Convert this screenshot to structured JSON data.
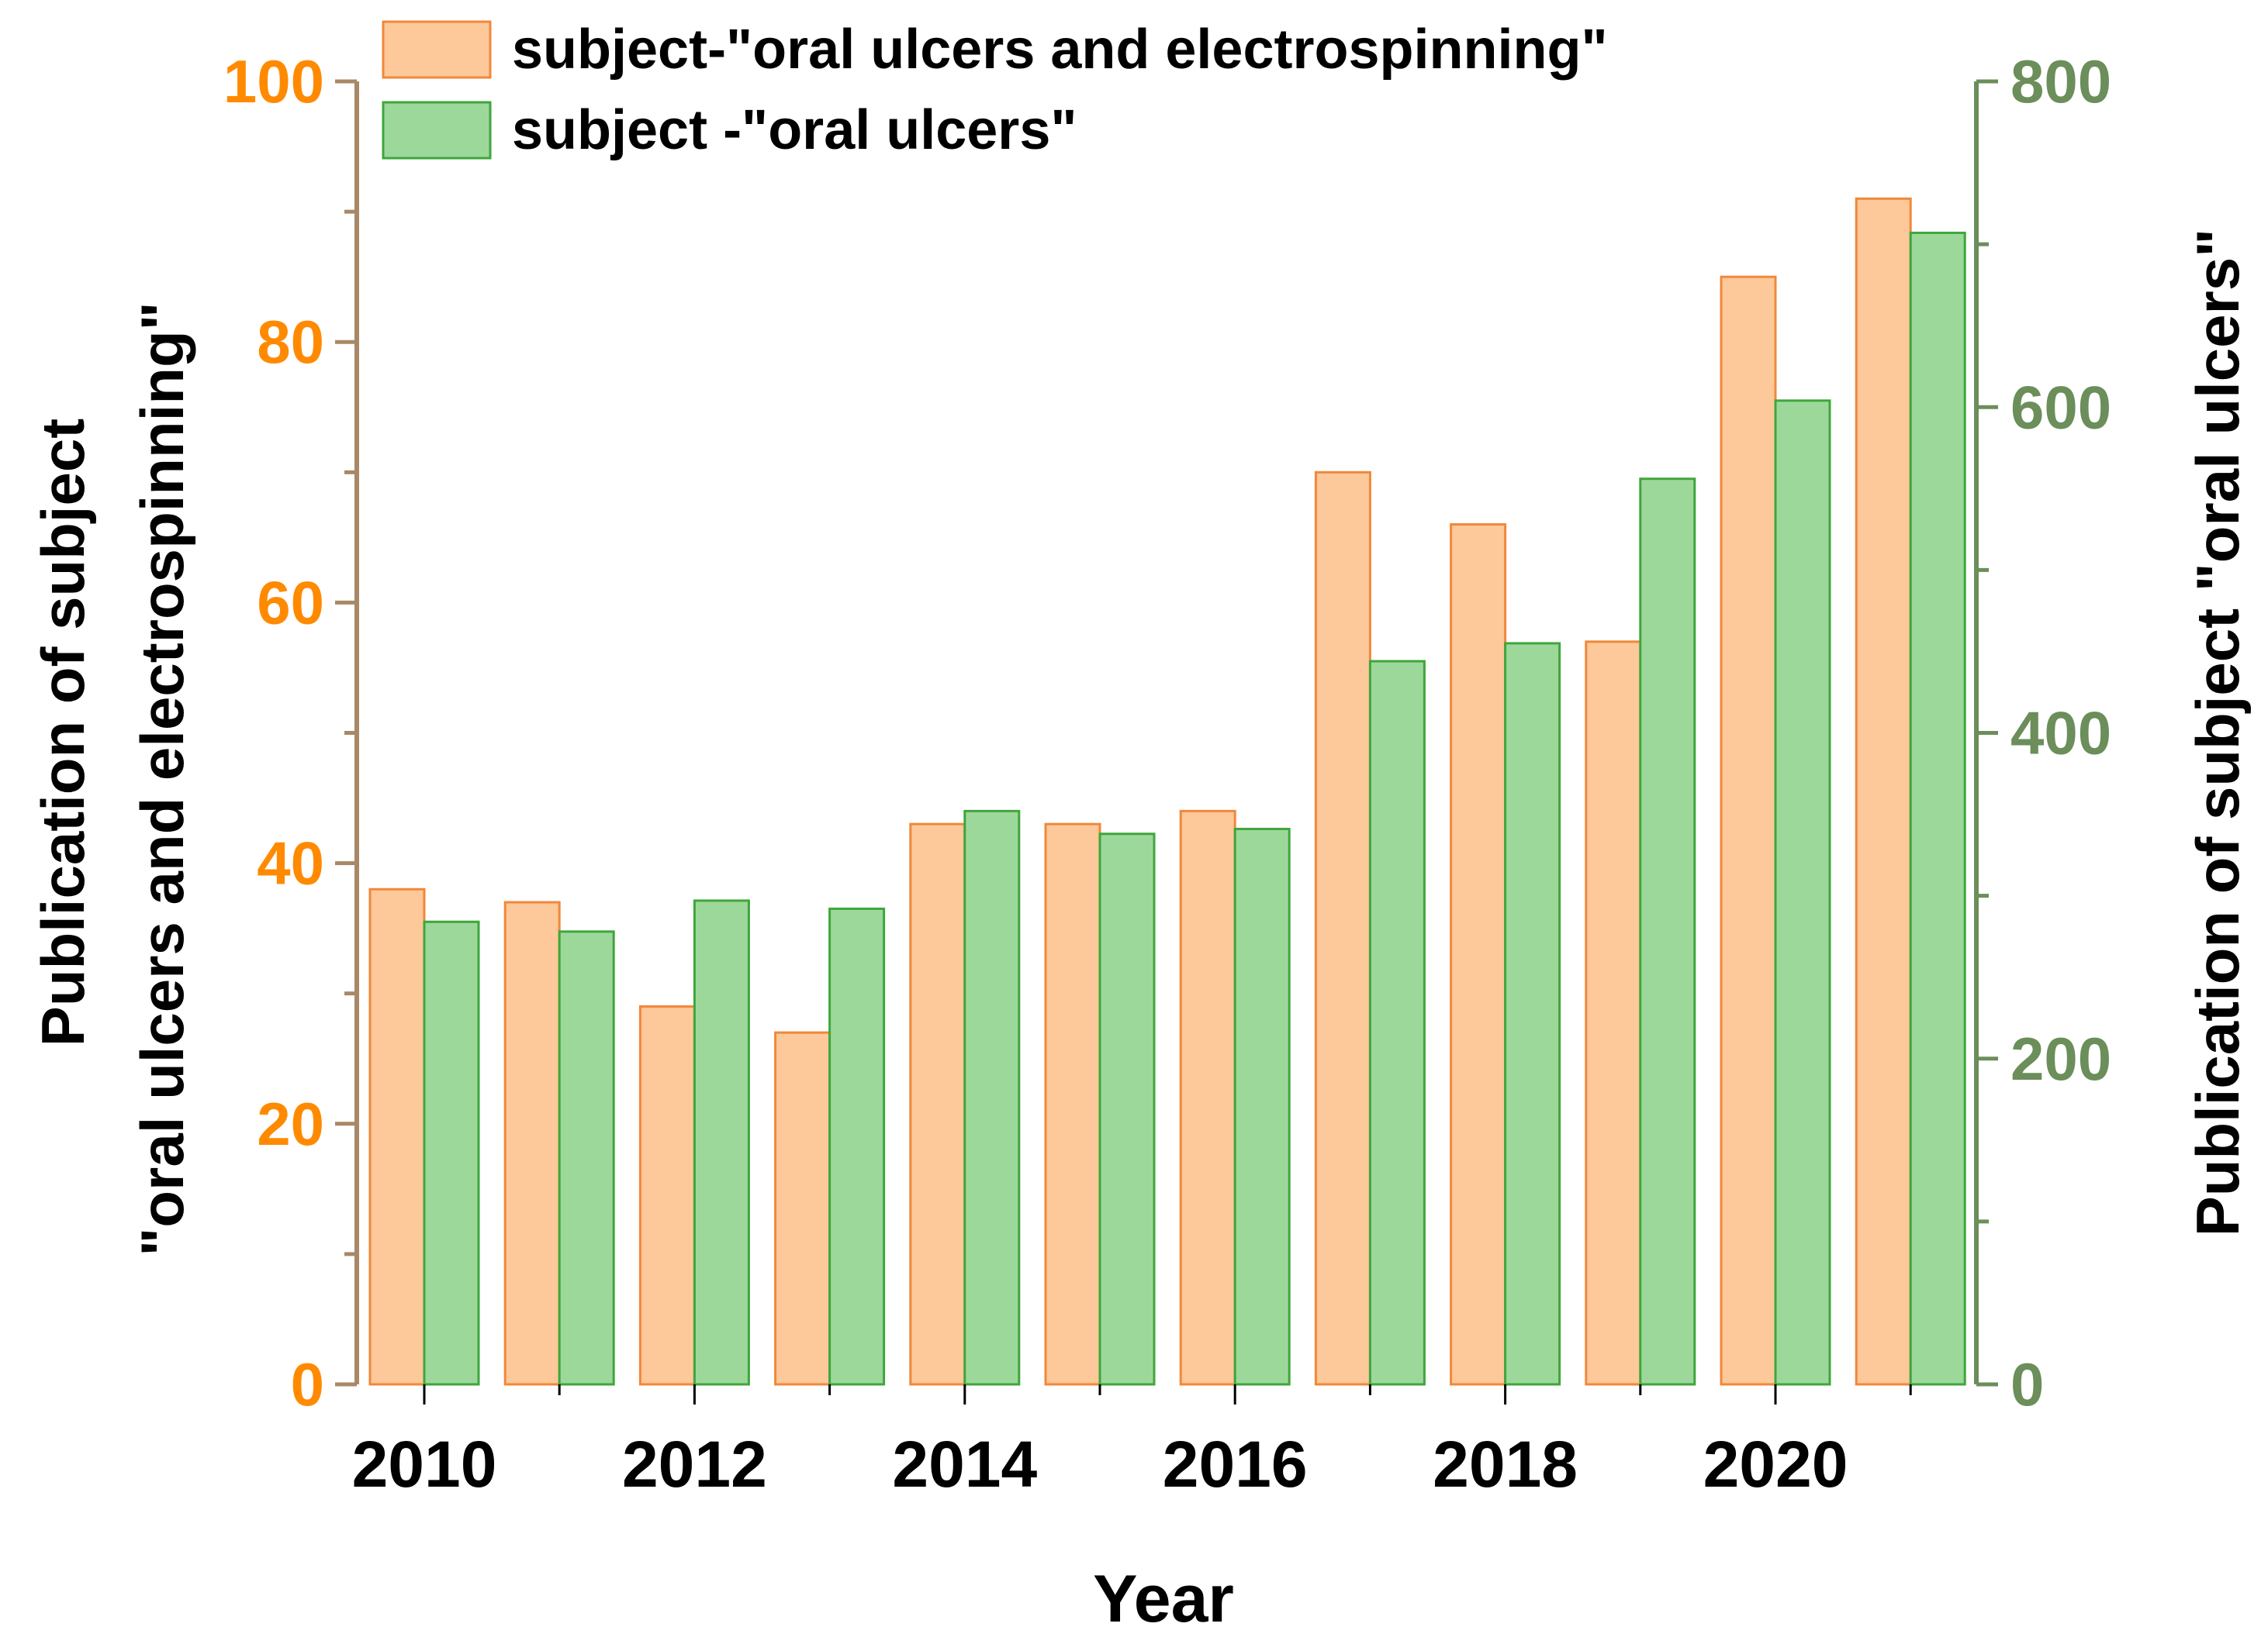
{
  "chart_data": {
    "type": "bar",
    "title": "",
    "xlabel": "Year",
    "x_tick_labels": [
      "2010",
      "2012",
      "2014",
      "2016",
      "2018",
      "2020"
    ],
    "categories": [
      2010,
      2011,
      2012,
      2013,
      2014,
      2015,
      2016,
      2017,
      2018,
      2019,
      2020,
      2021
    ],
    "left_axis": {
      "label_line1": "Publication of subject",
      "label_line2": "\"oral ulcers and electrospinning\"",
      "range": [
        0,
        100
      ],
      "major_ticks": [
        0,
        20,
        40,
        60,
        80,
        100
      ],
      "tick_labels": [
        "0",
        "20",
        "40",
        "60",
        "80",
        "100"
      ],
      "minor_step": 10,
      "label_color": "#ff8a00",
      "axis_color": "#a88866"
    },
    "right_axis": {
      "label": "Publication of subject \"oral ulcers\"",
      "range": [
        0,
        800
      ],
      "major_ticks": [
        0,
        200,
        400,
        600,
        800
      ],
      "tick_labels": [
        "0",
        "200",
        "400",
        "600",
        "800"
      ],
      "minor_step": 100,
      "label_color": "#6b8e5a",
      "axis_color": "#6b8e5a"
    },
    "series": [
      {
        "name": "subject-\"oral ulcers and electrospinning\"",
        "axis": "left",
        "values": [
          38,
          37,
          29,
          27,
          43,
          43,
          44,
          70,
          66,
          57,
          85,
          91
        ],
        "fill": "#fdc89a",
        "stroke": "#f0883a"
      },
      {
        "name": "subject -\"oral ulcers\"",
        "axis": "right",
        "values": [
          284,
          278,
          297,
          292,
          352,
          338,
          341,
          444,
          455,
          556,
          604,
          707
        ],
        "fill": "#9dd89b",
        "stroke": "#3fa63c"
      }
    ],
    "legend_position": "top-left",
    "grid": false
  }
}
